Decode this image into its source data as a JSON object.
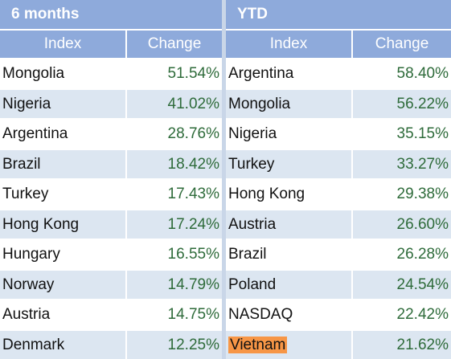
{
  "tables": [
    {
      "title": "6 months",
      "headers": {
        "index": "Index",
        "change": "Change"
      },
      "rows": [
        {
          "index": "Mongolia",
          "change": "51.54%"
        },
        {
          "index": "Nigeria",
          "change": "41.02%"
        },
        {
          "index": "Argentina",
          "change": "28.76%"
        },
        {
          "index": "Brazil",
          "change": "18.42%"
        },
        {
          "index": "Turkey",
          "change": "17.43%"
        },
        {
          "index": "Hong Kong",
          "change": "17.24%"
        },
        {
          "index": "Hungary",
          "change": "16.55%"
        },
        {
          "index": "Norway",
          "change": "14.79%"
        },
        {
          "index": "Austria",
          "change": "14.75%"
        },
        {
          "index": "Denmark",
          "change": "12.25%"
        }
      ]
    },
    {
      "title": "YTD",
      "headers": {
        "index": "Index",
        "change": "Change"
      },
      "rows": [
        {
          "index": "Argentina",
          "change": "58.40%"
        },
        {
          "index": "Mongolia",
          "change": "56.22%"
        },
        {
          "index": "Nigeria",
          "change": "35.15%"
        },
        {
          "index": "Turkey",
          "change": "33.27%"
        },
        {
          "index": "Hong Kong",
          "change": "29.38%"
        },
        {
          "index": "Austria",
          "change": "26.60%"
        },
        {
          "index": "Brazil",
          "change": "26.28%"
        },
        {
          "index": "Poland",
          "change": "24.54%"
        },
        {
          "index": "NASDAQ",
          "change": "22.42%"
        },
        {
          "index": "Vietnam",
          "change": "21.62%"
        }
      ]
    }
  ],
  "highlight": {
    "table": 1,
    "row": 9,
    "color": "#f79646"
  },
  "colors": {
    "header_bg": "#8eaadb",
    "row_alt": "#dce6f1",
    "change_text": "#2e6b3a"
  }
}
